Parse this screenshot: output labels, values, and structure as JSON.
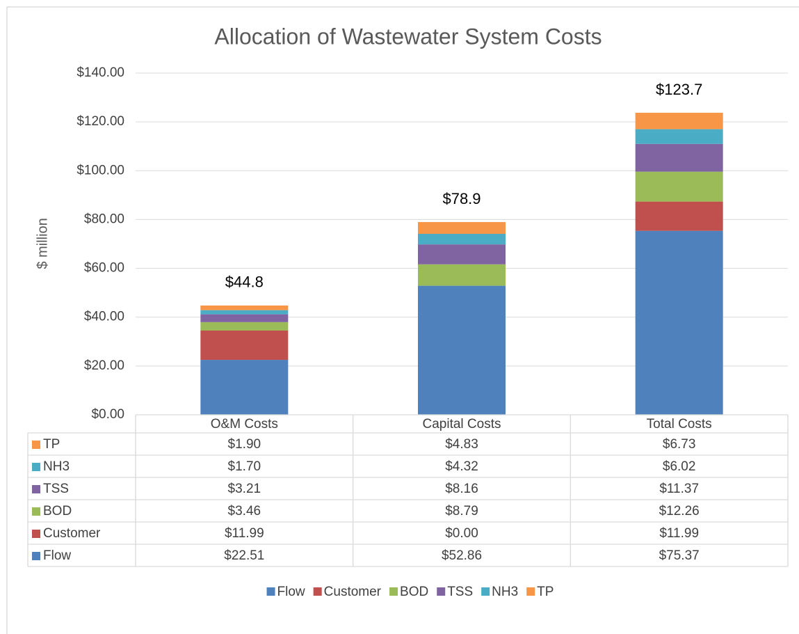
{
  "chart_data": {
    "type": "stacked_bar",
    "title": "Allocation of Wastewater System Costs",
    "y_label": "$ million",
    "categories": [
      "O&M Costs",
      "Capital Costs",
      "Total Costs"
    ],
    "series": [
      {
        "name": "Flow",
        "color": "#4f81bd",
        "values": [
          22.51,
          52.86,
          75.37
        ],
        "value_labels": [
          "$22.51",
          "$52.86",
          "$75.37"
        ]
      },
      {
        "name": "Customer",
        "color": "#c0504d",
        "values": [
          11.99,
          0.0,
          11.99
        ],
        "value_labels": [
          "$11.99",
          "$0.00",
          "$11.99"
        ]
      },
      {
        "name": "BOD",
        "color": "#9bbb59",
        "values": [
          3.46,
          8.79,
          12.26
        ],
        "value_labels": [
          "$3.46",
          "$8.79",
          "$12.26"
        ]
      },
      {
        "name": "TSS",
        "color": "#8064a2",
        "values": [
          3.21,
          8.16,
          11.37
        ],
        "value_labels": [
          "$3.21",
          "$8.16",
          "$11.37"
        ]
      },
      {
        "name": "NH3",
        "color": "#4bacc6",
        "values": [
          1.7,
          4.32,
          6.02
        ],
        "value_labels": [
          "$1.70",
          "$4.32",
          "$6.02"
        ]
      },
      {
        "name": "TP",
        "color": "#f79646",
        "values": [
          1.9,
          4.83,
          6.73
        ],
        "value_labels": [
          "$1.90",
          "$4.83",
          "$6.73"
        ]
      }
    ],
    "totals": [
      44.8,
      78.9,
      123.7
    ],
    "total_labels": [
      "$44.8",
      "$78.9",
      "$123.7"
    ],
    "ylim": [
      0,
      140
    ],
    "yticks": [
      {
        "value": 0,
        "label": "$0.00"
      },
      {
        "value": 20,
        "label": "$20.00"
      },
      {
        "value": 40,
        "label": "$40.00"
      },
      {
        "value": 60,
        "label": "$60.00"
      },
      {
        "value": 80,
        "label": "$80.00"
      },
      {
        "value": 100,
        "label": "$100.00"
      },
      {
        "value": 120,
        "label": "$120.00"
      },
      {
        "value": 140,
        "label": "$140.00"
      }
    ],
    "grid": true,
    "legend": "bottom"
  }
}
